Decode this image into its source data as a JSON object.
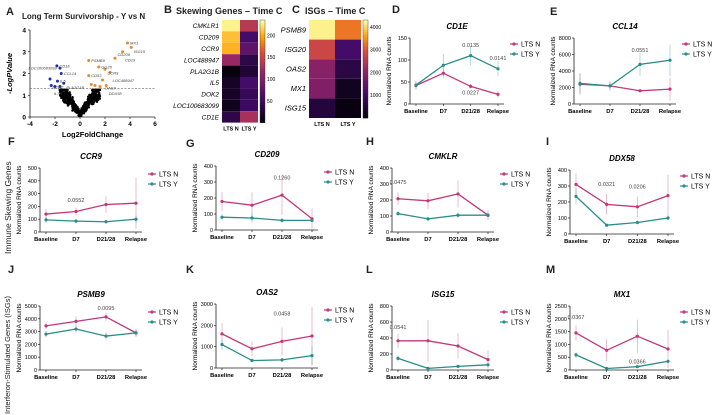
{
  "colors": {
    "lts_n": "#c2377a",
    "lts_y": "#2a8c8c",
    "up": "#e8892a",
    "down": "#1f2fb0",
    "ns": "#000000"
  },
  "panels": {
    "A": "A",
    "B": "B",
    "C": "C",
    "D": "D",
    "E": "E",
    "F": "F",
    "G": "G",
    "H": "H",
    "I": "I",
    "J": "J",
    "K": "K",
    "L": "L",
    "M": "M"
  },
  "row_labels": {
    "skewing": "Immune Skewing Genes",
    "isg": "Interferon-Stimulated Genes (ISGs)"
  },
  "chart_data": [
    {
      "id": "A",
      "type": "scatter",
      "title": "Long Term Survivorship - Y vs N",
      "xlabel": "Log2FoldChange",
      "ylabel": "-LogPValue",
      "xlim": [
        -4,
        6
      ],
      "ylim": [
        0,
        4
      ],
      "xticks": [
        -4,
        -2,
        0,
        2,
        4,
        6
      ],
      "yticks": [
        0,
        1,
        2,
        3,
        4
      ],
      "threshold": 1.3,
      "up": [
        {
          "label": "MX1",
          "x": 3.8,
          "y": 3.4
        },
        {
          "label": "ISG15",
          "x": 4.1,
          "y": 3.2
        },
        {
          "label": "CD19",
          "x": 3.4,
          "y": 3.0
        },
        {
          "label": "CD209",
          "x": 2.8,
          "y": 2.7
        },
        {
          "label": "PSMB9",
          "x": 0.7,
          "y": 2.6
        },
        {
          "label": "GG20",
          "x": 1.5,
          "y": 2.3
        },
        {
          "label": "CCR9",
          "x": 2.0,
          "y": 2.2
        },
        {
          "label": "LOC488947",
          "x": 2.4,
          "y": 2.05
        },
        {
          "label": "CD53",
          "x": 0.7,
          "y": 1.9
        },
        {
          "label": "OAS2",
          "x": 1.8,
          "y": 1.7
        },
        {
          "label": "DDX58",
          "x": 2.1,
          "y": 1.45
        },
        {
          "label": "",
          "x": 0.9,
          "y": 1.5
        },
        {
          "label": "",
          "x": 1.6,
          "y": 1.4
        },
        {
          "label": "",
          "x": 1.2,
          "y": 1.45
        }
      ],
      "down": [
        {
          "label": "CD1E",
          "x": -1.85,
          "y": 2.35
        },
        {
          "label": "LOC100683099",
          "x": -1.6,
          "y": 2.25
        },
        {
          "label": "CCL14",
          "x": -1.5,
          "y": 2.0
        },
        {
          "label": "IL5",
          "x": -1.8,
          "y": 1.65
        },
        {
          "label": "PLA2G1B",
          "x": -1.3,
          "y": 1.55
        },
        {
          "label": "DOK2",
          "x": -2.4,
          "y": 1.75
        },
        {
          "label": "IL7R",
          "x": -2.3,
          "y": 1.45
        },
        {
          "label": "",
          "x": -2.0,
          "y": 1.4
        },
        {
          "label": "",
          "x": -1.6,
          "y": 1.4
        }
      ]
    },
    {
      "id": "B",
      "type": "heatmap",
      "title": "Skewing Genes – Time C",
      "columns": [
        "LTS N",
        "LTS Y"
      ],
      "rows": [
        "CMKLR1",
        "CD209",
        "CCR9",
        "LOC488947",
        "PLA2G1B",
        "IL5",
        "DOK2",
        "LOC100683099",
        "CD1E"
      ],
      "values": [
        [
          230,
          140
        ],
        [
          210,
          60
        ],
        [
          205,
          80
        ],
        [
          120,
          40
        ],
        [
          5,
          30
        ],
        [
          20,
          60
        ],
        [
          20,
          50
        ],
        [
          15,
          55
        ],
        [
          40,
          130
        ]
      ],
      "range": [
        0,
        235
      ],
      "colorbar_ticks": [
        50,
        100,
        150,
        200
      ]
    },
    {
      "id": "C",
      "type": "heatmap",
      "title": "ISGs – Time C",
      "columns": [
        "LTS N",
        "LTS Y"
      ],
      "rows": [
        "PSMB9",
        "ISG20",
        "OAS2",
        "MX1",
        "ISG15"
      ],
      "values": [
        [
          4200,
          3300
        ],
        [
          2800,
          1100
        ],
        [
          2000,
          700
        ],
        [
          1900,
          300
        ],
        [
          600,
          150
        ]
      ],
      "range": [
        0,
        4300
      ],
      "colorbar_ticks": [
        1000,
        2000,
        3000,
        4000
      ]
    },
    {
      "id": "D",
      "type": "line",
      "title": "CD1E",
      "ylabel": "Normalized RNA counts",
      "categories": [
        "Baseline",
        "D7",
        "D21/28",
        "Relapse"
      ],
      "ylim": [
        0,
        150
      ],
      "yticks": [
        0,
        50,
        100,
        150
      ],
      "series": [
        {
          "name": "LTS N",
          "values": [
            42,
            70,
            40,
            22
          ],
          "err": [
            10,
            10,
            5,
            8
          ]
        },
        {
          "name": "LTS Y",
          "values": [
            43,
            88,
            110,
            80
          ],
          "err": [
            8,
            25,
            22,
            17
          ]
        }
      ],
      "annotations": [
        {
          "text": "0.0135",
          "x": 2,
          "y": 130
        },
        {
          "text": "0.0141",
          "x": 3,
          "y": 100
        },
        {
          "text": "0.0227",
          "x": 2,
          "y": 22
        }
      ]
    },
    {
      "id": "E",
      "type": "line",
      "title": "CCL14",
      "ylabel": "Normalized RNA counts",
      "categories": [
        "Baseline",
        "D7",
        "D21/28",
        "Relapse"
      ],
      "ylim": [
        0,
        8000
      ],
      "yticks": [
        0,
        2000,
        4000,
        6000,
        8000
      ],
      "series": [
        {
          "name": "LTS N",
          "values": [
            2400,
            2200,
            1600,
            1800
          ],
          "err": [
            1300,
            600,
            200,
            1400
          ]
        },
        {
          "name": "LTS Y",
          "values": [
            2500,
            2200,
            4800,
            5300
          ],
          "err": [
            1200,
            500,
            1400,
            1900
          ]
        }
      ],
      "annotations": [
        {
          "text": "0.0551",
          "x": 2,
          "y": 6300
        }
      ]
    },
    {
      "id": "F",
      "type": "line",
      "title": "CCR9",
      "ylabel": "Normalized RNA counts",
      "categories": [
        "Baseline",
        "D7",
        "D21/28",
        "Relapse"
      ],
      "ylim": [
        0,
        500
      ],
      "yticks": [
        0,
        100,
        200,
        300,
        400,
        500
      ],
      "series": [
        {
          "name": "LTS N",
          "values": [
            140,
            160,
            215,
            225
          ],
          "err": [
            40,
            30,
            65,
            200
          ]
        },
        {
          "name": "LTS Y",
          "values": [
            95,
            85,
            80,
            100
          ],
          "err": [
            25,
            20,
            15,
            30
          ]
        }
      ],
      "annotations": [
        {
          "text": "0.0552",
          "x": 1,
          "y": 235
        }
      ]
    },
    {
      "id": "G",
      "type": "line",
      "title": "CD209",
      "ylabel": "Normalized RNA counts",
      "categories": [
        "Baseline",
        "D7",
        "D21/28",
        "Relapse"
      ],
      "ylim": [
        0,
        400
      ],
      "yticks": [
        0,
        100,
        200,
        300,
        400
      ],
      "series": [
        {
          "name": "LTS N",
          "values": [
            178,
            155,
            218,
            70
          ],
          "err": [
            60,
            80,
            125,
            65
          ]
        },
        {
          "name": "LTS Y",
          "values": [
            80,
            75,
            60,
            60
          ],
          "err": [
            20,
            30,
            15,
            15
          ]
        }
      ],
      "annotations": [
        {
          "text": "0.1260",
          "x": 2,
          "y": 315
        }
      ]
    },
    {
      "id": "H",
      "type": "line",
      "title": "CMKLR",
      "ylabel": "Normalized RNA counts",
      "categories": [
        "Baseline",
        "D7",
        "D21/28",
        "Relapse"
      ],
      "ylim": [
        0,
        400
      ],
      "yticks": [
        0,
        100,
        200,
        300,
        400
      ],
      "series": [
        {
          "name": "LTS N",
          "values": [
            208,
            195,
            238,
            105
          ],
          "err": [
            40,
            50,
            85,
            30
          ]
        },
        {
          "name": "LTS Y",
          "values": [
            115,
            82,
            105,
            105
          ],
          "err": [
            15,
            12,
            20,
            15
          ]
        }
      ],
      "annotations": [
        {
          "text": "0.0475",
          "x": 0,
          "y": 300
        }
      ]
    },
    {
      "id": "I",
      "type": "line",
      "title": "DDX58",
      "ylabel": "Normalized RNA counts",
      "categories": [
        "Baseline",
        "D7",
        "D21/28",
        "Relapse"
      ],
      "ylim": [
        0,
        400
      ],
      "yticks": [
        0,
        100,
        200,
        300,
        400
      ],
      "series": [
        {
          "name": "LTS N",
          "values": [
            310,
            185,
            170,
            240
          ],
          "err": [
            70,
            65,
            65,
            130
          ]
        },
        {
          "name": "LTS Y",
          "values": [
            235,
            55,
            72,
            100
          ],
          "err": [
            50,
            8,
            12,
            15
          ]
        }
      ],
      "annotations": [
        {
          "text": "0.0321",
          "x": 1,
          "y": 300
        },
        {
          "text": "0.0206",
          "x": 2,
          "y": 285
        }
      ]
    },
    {
      "id": "J",
      "type": "line",
      "title": "PSMB9",
      "ylabel": "Normalized RNA counts",
      "categories": [
        "Baseline",
        "D7",
        "D21/28",
        "Relapse"
      ],
      "ylim": [
        0,
        5000
      ],
      "yticks": [
        0,
        1000,
        2000,
        3000,
        4000,
        5000
      ],
      "series": [
        {
          "name": "LTS N",
          "values": [
            3450,
            3800,
            4150,
            2900
          ],
          "err": [
            250,
            400,
            300,
            300
          ]
        },
        {
          "name": "LTS Y",
          "values": [
            2800,
            3200,
            2650,
            2900
          ],
          "err": [
            250,
            250,
            300,
            250
          ]
        }
      ],
      "annotations": [
        {
          "text": "0.0095",
          "x": 2,
          "y": 4700
        }
      ]
    },
    {
      "id": "K",
      "type": "line",
      "title": "OAS2",
      "ylabel": "Normalized RNA counts",
      "categories": [
        "Baseline",
        "D7",
        "D21/28",
        "Relapse"
      ],
      "ylim": [
        0,
        3000
      ],
      "yticks": [
        0,
        1000,
        2000,
        3000
      ],
      "series": [
        {
          "name": "LTS N",
          "values": [
            1600,
            900,
            1250,
            1500
          ],
          "err": [
            500,
            350,
            650,
            1350
          ]
        },
        {
          "name": "LTS Y",
          "values": [
            1100,
            350,
            380,
            580
          ],
          "err": [
            250,
            80,
            100,
            450
          ]
        }
      ],
      "annotations": [
        {
          "text": "0.0458",
          "x": 2,
          "y": 2450
        }
      ]
    },
    {
      "id": "L",
      "type": "line",
      "title": "ISG15",
      "ylabel": "Normalized RNA counts",
      "categories": [
        "Baseline",
        "D7",
        "D21/28",
        "Relapse"
      ],
      "ylim": [
        0,
        800
      ],
      "yticks": [
        0,
        200,
        400,
        600,
        800
      ],
      "series": [
        {
          "name": "LTS N",
          "values": [
            365,
            365,
            300,
            130
          ],
          "err": [
            90,
            260,
            160,
            110
          ]
        },
        {
          "name": "LTS Y",
          "values": [
            145,
            20,
            45,
            65
          ],
          "err": [
            40,
            10,
            10,
            15
          ]
        }
      ],
      "annotations": [
        {
          "text": "0.0541",
          "x": 0,
          "y": 510
        }
      ]
    },
    {
      "id": "M",
      "type": "line",
      "title": "MX1",
      "ylabel": "Normalized RNA counts",
      "categories": [
        "Baseline",
        "D7",
        "D21/28",
        "Relapse"
      ],
      "ylim": [
        0,
        2500
      ],
      "yticks": [
        0,
        500,
        1000,
        1500,
        2000,
        2500
      ],
      "series": [
        {
          "name": "LTS N",
          "values": [
            1450,
            770,
            1320,
            820
          ],
          "err": [
            300,
            420,
            650,
            750
          ]
        },
        {
          "name": "LTS Y",
          "values": [
            590,
            60,
            130,
            340
          ],
          "err": [
            120,
            30,
            40,
            80
          ]
        }
      ],
      "annotations": [
        {
          "text": "0.0367",
          "x": 0,
          "y": 2000
        },
        {
          "text": "0.0366",
          "x": 2,
          "y": 260
        }
      ]
    }
  ]
}
